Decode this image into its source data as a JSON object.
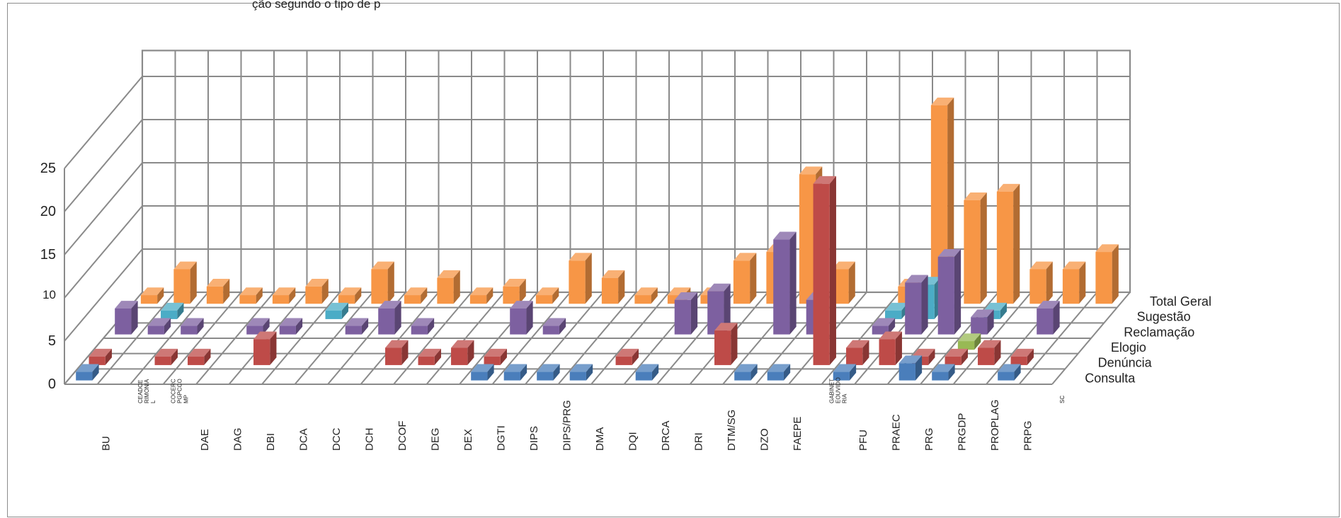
{
  "chart_data": {
    "type": "bar",
    "title": "",
    "title_fragment": "ção segundo o tipo de p",
    "projection": "3d",
    "ylim": [
      0,
      25
    ],
    "y_ticks": [
      0,
      5,
      10,
      15,
      20,
      25
    ],
    "grid": true,
    "categories": [
      "BU",
      "CEADCE RIMONIA L",
      "COCERC PGPCCO MP",
      "DAE",
      "DAG",
      "DBI",
      "DCA",
      "DCC",
      "DCH",
      "DCOF",
      "DEG",
      "DEX",
      "DGTI",
      "DIPS",
      "DIPS/PRG",
      "DMA",
      "DQI",
      "DRCA",
      "DRI",
      "DTM/SG",
      "DZO",
      "FAEPE",
      "GABINET EOUVIDO RIA",
      "PFU",
      "PRAEC",
      "PRG",
      "PRGDP",
      "PROPLAG",
      "PRPG",
      "SC"
    ],
    "category_label_style": [
      "big",
      "tiny",
      "tiny",
      "big",
      "big",
      "big",
      "big",
      "big",
      "big",
      "big",
      "big",
      "big",
      "big",
      "big",
      "big",
      "big",
      "big",
      "big",
      "big",
      "big",
      "big",
      "big",
      "tiny",
      "big",
      "big",
      "big",
      "big",
      "big",
      "big",
      "tiny"
    ],
    "series": [
      {
        "name": "Consulta",
        "color": "#4a7ebb",
        "values": [
          1,
          0,
          0,
          0,
          0,
          0,
          0,
          0,
          0,
          0,
          0,
          0,
          1,
          1,
          1,
          1,
          0,
          1,
          0,
          0,
          1,
          1,
          0,
          1,
          0,
          2,
          1,
          0,
          1,
          0
        ]
      },
      {
        "name": "Denúncia",
        "color": "#be4b48",
        "values": [
          1,
          0,
          1,
          1,
          0,
          3,
          0,
          0,
          0,
          2,
          1,
          2,
          1,
          0,
          0,
          0,
          1,
          0,
          0,
          4,
          0,
          0,
          21,
          2,
          3,
          1,
          1,
          2,
          1,
          0
        ]
      },
      {
        "name": "Elogio",
        "color": "#98b954",
        "values": [
          0,
          0,
          0,
          0,
          0,
          0,
          0,
          0,
          0,
          0,
          0,
          0,
          0,
          0,
          0,
          0,
          0,
          0,
          0,
          0,
          0,
          0,
          0,
          0,
          0,
          0,
          1,
          0,
          0,
          0
        ]
      },
      {
        "name": "Reclamação",
        "color": "#7d60a0",
        "values": [
          3,
          1,
          1,
          0,
          1,
          1,
          0,
          1,
          3,
          1,
          0,
          0,
          3,
          1,
          0,
          0,
          0,
          4,
          5,
          0,
          11,
          4,
          0,
          1,
          6,
          9,
          2,
          0,
          3,
          0
        ]
      },
      {
        "name": "Sugestão",
        "color": "#4bacc6",
        "values": [
          0,
          1,
          0,
          0,
          0,
          0,
          1,
          0,
          0,
          0,
          0,
          0,
          0,
          0,
          0,
          0,
          0,
          0,
          0,
          0,
          0,
          0,
          0,
          1,
          4,
          0,
          1,
          0,
          0,
          0
        ]
      },
      {
        "name": "Total Geral",
        "color": "#f79646",
        "values": [
          1,
          4,
          2,
          1,
          1,
          2,
          1,
          4,
          1,
          3,
          1,
          2,
          1,
          5,
          3,
          1,
          1,
          1,
          5,
          6,
          15,
          4,
          0,
          2,
          23,
          12,
          13,
          4,
          4,
          6
        ]
      }
    ]
  }
}
